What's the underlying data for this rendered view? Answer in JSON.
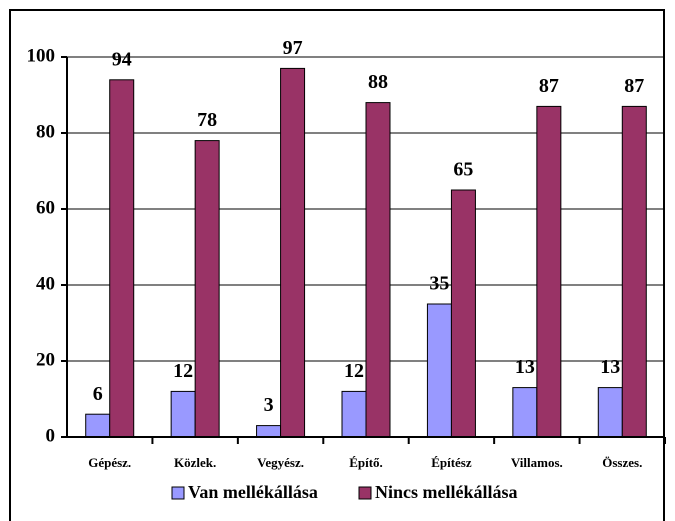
{
  "chart_data": {
    "type": "bar",
    "categories": [
      "Gépész.",
      "Közlek.",
      "Vegyész.",
      "Építő.",
      "Építész",
      "Villamos.",
      "Összes."
    ],
    "series": [
      {
        "name": "Van mellékállása",
        "color": "#9999ff",
        "values": [
          6,
          12,
          3,
          12,
          35,
          13,
          13
        ]
      },
      {
        "name": "Nincs mellékállása",
        "color": "#993366",
        "values": [
          94,
          78,
          97,
          88,
          65,
          87,
          87
        ]
      }
    ],
    "ylim": [
      0,
      100
    ],
    "yticks": [
      0,
      20,
      40,
      60,
      80,
      100
    ],
    "grid": true,
    "legend": "bottom"
  }
}
